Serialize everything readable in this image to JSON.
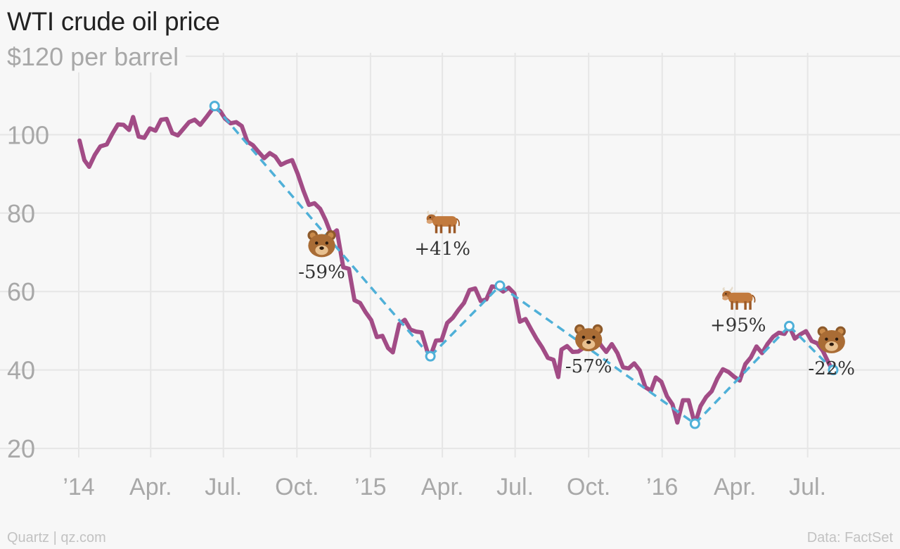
{
  "title": "WTI crude oil price",
  "footer": {
    "source_left": "Quartz | qz.com",
    "source_right": "Data: FactSet"
  },
  "colors": {
    "price": "#a24c86",
    "trend": "#4fb0d8",
    "grid": "#e6e6e6",
    "text_muted": "#a8a8a8"
  },
  "icons": {
    "bear": "bear-face-icon",
    "bull": "ox-icon"
  },
  "chart_data": {
    "type": "line",
    "title": "WTI crude oil price",
    "ylabel": "$120 per barrel",
    "ylim": [
      15,
      125
    ],
    "xlim": [
      "2014-01-01",
      "2016-09-15"
    ],
    "grid": true,
    "yticks": [
      {
        "value": 120,
        "label": "$120 per barrel"
      },
      {
        "value": 100,
        "label": "100"
      },
      {
        "value": 80,
        "label": "80"
      },
      {
        "value": 60,
        "label": "60"
      },
      {
        "value": 40,
        "label": "40"
      },
      {
        "value": 20,
        "label": "20"
      }
    ],
    "xticks": [
      {
        "date": "2014-01-01",
        "label": "’14"
      },
      {
        "date": "2014-04-01",
        "label": "Apr."
      },
      {
        "date": "2014-07-01",
        "label": "Jul."
      },
      {
        "date": "2014-10-01",
        "label": "Oct."
      },
      {
        "date": "2015-01-01",
        "label": "’15"
      },
      {
        "date": "2015-04-01",
        "label": "Apr."
      },
      {
        "date": "2015-07-01",
        "label": "Jul."
      },
      {
        "date": "2015-10-01",
        "label": "Oct."
      },
      {
        "date": "2016-01-01",
        "label": "’16"
      },
      {
        "date": "2016-04-01",
        "label": "Apr."
      },
      {
        "date": "2016-07-01",
        "label": "Jul."
      }
    ],
    "series": [
      {
        "points": [
          [
            "2014-01-02",
            98.5
          ],
          [
            "2014-01-08",
            93.5
          ],
          [
            "2014-01-14",
            91.8
          ],
          [
            "2014-01-21",
            94.8
          ],
          [
            "2014-01-28",
            97.0
          ],
          [
            "2014-02-05",
            97.5
          ],
          [
            "2014-02-12",
            100.2
          ],
          [
            "2014-02-19",
            102.6
          ],
          [
            "2014-02-26",
            102.5
          ],
          [
            "2014-03-05",
            101.2
          ],
          [
            "2014-03-10",
            104.5
          ],
          [
            "2014-03-17",
            99.5
          ],
          [
            "2014-03-24",
            99.2
          ],
          [
            "2014-03-31",
            101.6
          ],
          [
            "2014-04-07",
            101.0
          ],
          [
            "2014-04-14",
            103.8
          ],
          [
            "2014-04-21",
            104.0
          ],
          [
            "2014-04-28",
            100.4
          ],
          [
            "2014-05-05",
            99.8
          ],
          [
            "2014-05-12",
            101.5
          ],
          [
            "2014-05-19",
            103.2
          ],
          [
            "2014-05-26",
            103.8
          ],
          [
            "2014-06-02",
            102.5
          ],
          [
            "2014-06-09",
            104.3
          ],
          [
            "2014-06-16",
            106.2
          ],
          [
            "2014-06-20",
            107.0
          ],
          [
            "2014-06-27",
            106.0
          ],
          [
            "2014-07-03",
            104.1
          ],
          [
            "2014-07-10",
            102.9
          ],
          [
            "2014-07-17",
            103.2
          ],
          [
            "2014-07-24",
            102.2
          ],
          [
            "2014-07-31",
            98.2
          ],
          [
            "2014-08-07",
            97.3
          ],
          [
            "2014-08-14",
            95.6
          ],
          [
            "2014-08-21",
            94.0
          ],
          [
            "2014-08-28",
            95.3
          ],
          [
            "2014-09-04",
            94.4
          ],
          [
            "2014-09-11",
            92.3
          ],
          [
            "2014-09-18",
            93.0
          ],
          [
            "2014-09-25",
            93.5
          ],
          [
            "2014-10-02",
            90.0
          ],
          [
            "2014-10-09",
            85.8
          ],
          [
            "2014-10-16",
            82.1
          ],
          [
            "2014-10-23",
            82.5
          ],
          [
            "2014-10-30",
            81.1
          ],
          [
            "2014-11-06",
            78.2
          ],
          [
            "2014-11-13",
            74.5
          ],
          [
            "2014-11-20",
            75.6
          ],
          [
            "2014-11-28",
            66.2
          ],
          [
            "2014-12-05",
            65.8
          ],
          [
            "2014-12-12",
            57.8
          ],
          [
            "2014-12-19",
            57.1
          ],
          [
            "2014-12-26",
            54.7
          ],
          [
            "2015-01-02",
            52.7
          ],
          [
            "2015-01-09",
            48.4
          ],
          [
            "2015-01-16",
            48.7
          ],
          [
            "2015-01-23",
            45.6
          ],
          [
            "2015-01-29",
            44.5
          ],
          [
            "2015-02-06",
            51.7
          ],
          [
            "2015-02-13",
            52.8
          ],
          [
            "2015-02-20",
            50.3
          ],
          [
            "2015-02-27",
            49.8
          ],
          [
            "2015-03-06",
            49.6
          ],
          [
            "2015-03-13",
            44.8
          ],
          [
            "2015-03-17",
            43.5
          ],
          [
            "2015-03-24",
            47.5
          ],
          [
            "2015-03-31",
            47.6
          ],
          [
            "2015-04-07",
            52.0
          ],
          [
            "2015-04-14",
            53.3
          ],
          [
            "2015-04-21",
            55.3
          ],
          [
            "2015-04-28",
            57.1
          ],
          [
            "2015-05-05",
            60.4
          ],
          [
            "2015-05-12",
            60.8
          ],
          [
            "2015-05-19",
            57.6
          ],
          [
            "2015-05-26",
            58.0
          ],
          [
            "2015-06-02",
            61.3
          ],
          [
            "2015-06-09",
            61.1
          ],
          [
            "2015-06-16",
            60.0
          ],
          [
            "2015-06-23",
            61.0
          ],
          [
            "2015-06-30",
            59.5
          ],
          [
            "2015-07-07",
            52.3
          ],
          [
            "2015-07-14",
            53.0
          ],
          [
            "2015-07-21",
            50.4
          ],
          [
            "2015-07-28",
            47.9
          ],
          [
            "2015-08-04",
            45.7
          ],
          [
            "2015-08-11",
            43.1
          ],
          [
            "2015-08-18",
            42.6
          ],
          [
            "2015-08-24",
            38.2
          ],
          [
            "2015-08-28",
            45.2
          ],
          [
            "2015-09-04",
            46.1
          ],
          [
            "2015-09-11",
            44.6
          ],
          [
            "2015-09-18",
            44.7
          ],
          [
            "2015-09-25",
            45.7
          ],
          [
            "2015-10-02",
            45.5
          ],
          [
            "2015-10-09",
            49.6
          ],
          [
            "2015-10-16",
            46.4
          ],
          [
            "2015-10-23",
            44.6
          ],
          [
            "2015-10-30",
            46.6
          ],
          [
            "2015-11-06",
            44.3
          ],
          [
            "2015-11-13",
            40.7
          ],
          [
            "2015-11-20",
            40.4
          ],
          [
            "2015-11-27",
            41.7
          ],
          [
            "2015-12-04",
            39.9
          ],
          [
            "2015-12-11",
            35.6
          ],
          [
            "2015-12-18",
            34.7
          ],
          [
            "2015-12-24",
            38.1
          ],
          [
            "2015-12-31",
            37.0
          ],
          [
            "2016-01-07",
            33.3
          ],
          [
            "2016-01-14",
            31.2
          ],
          [
            "2016-01-20",
            26.6
          ],
          [
            "2016-01-27",
            32.3
          ],
          [
            "2016-02-03",
            32.3
          ],
          [
            "2016-02-11",
            26.2
          ],
          [
            "2016-02-18",
            30.8
          ],
          [
            "2016-02-25",
            33.1
          ],
          [
            "2016-03-03",
            34.6
          ],
          [
            "2016-03-10",
            37.8
          ],
          [
            "2016-03-17",
            40.2
          ],
          [
            "2016-03-24",
            39.5
          ],
          [
            "2016-03-31",
            38.3
          ],
          [
            "2016-04-07",
            37.3
          ],
          [
            "2016-04-14",
            41.5
          ],
          [
            "2016-04-21",
            43.2
          ],
          [
            "2016-04-28",
            46.0
          ],
          [
            "2016-05-05",
            44.3
          ],
          [
            "2016-05-12",
            46.7
          ],
          [
            "2016-05-19",
            48.5
          ],
          [
            "2016-05-26",
            49.5
          ],
          [
            "2016-06-02",
            49.2
          ],
          [
            "2016-06-08",
            51.2
          ],
          [
            "2016-06-15",
            48.0
          ],
          [
            "2016-06-22",
            49.1
          ],
          [
            "2016-06-29",
            49.9
          ],
          [
            "2016-07-06",
            47.4
          ],
          [
            "2016-07-13",
            46.8
          ],
          [
            "2016-07-20",
            44.9
          ],
          [
            "2016-07-27",
            41.9
          ],
          [
            "2016-08-02",
            39.5
          ]
        ]
      }
    ],
    "trend_points": [
      [
        "2014-06-20",
        107.3
      ],
      [
        "2015-03-17",
        43.5
      ],
      [
        "2015-06-12",
        61.5
      ],
      [
        "2016-02-11",
        26.3
      ],
      [
        "2016-06-08",
        51.2
      ],
      [
        "2016-08-02",
        40.0
      ]
    ],
    "annotations": [
      {
        "icon": "bear",
        "label": "-59%",
        "date": "2014-11-01",
        "value": 67
      },
      {
        "icon": "bull",
        "label": "+41%",
        "date": "2015-04-01",
        "value": 73
      },
      {
        "icon": "bear",
        "label": "-57%",
        "date": "2015-10-01",
        "value": 43
      },
      {
        "icon": "bull",
        "label": "+95%",
        "date": "2016-04-05",
        "value": 53.5
      },
      {
        "icon": "bear",
        "label": "-22%",
        "date": "2016-07-31",
        "value": 42.5
      }
    ]
  }
}
